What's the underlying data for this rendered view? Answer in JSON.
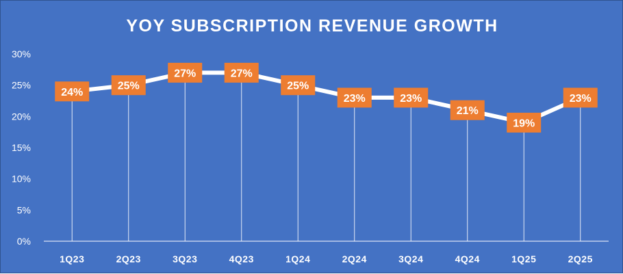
{
  "chart_data": {
    "type": "line",
    "title": "YOY SUBSCRIPTION REVENUE GROWTH",
    "xlabel": "",
    "ylabel": "",
    "categories": [
      "1Q23",
      "2Q23",
      "3Q23",
      "4Q23",
      "1Q24",
      "2Q24",
      "3Q24",
      "4Q24",
      "1Q25",
      "2Q25"
    ],
    "series": [
      {
        "name": "YoY subscription revenue growth",
        "values": [
          24,
          25,
          27,
          27,
          25,
          23,
          23,
          21,
          19,
          23
        ],
        "labels": [
          "24%",
          "25%",
          "27%",
          "27%",
          "25%",
          "23%",
          "23%",
          "21%",
          "19%",
          "23%"
        ]
      }
    ],
    "ylim": [
      0,
      30
    ],
    "yticks": [
      0,
      5,
      10,
      15,
      20,
      25,
      30
    ],
    "ytick_labels": [
      "0%",
      "5%",
      "10%",
      "15%",
      "20%",
      "25%",
      "30%"
    ],
    "grid": false,
    "drop_lines": true,
    "legend": "none"
  },
  "colors": {
    "background": "#4472c4",
    "line": "#ffffff",
    "label_box": "#ed7d31",
    "text": "#ffffff"
  }
}
